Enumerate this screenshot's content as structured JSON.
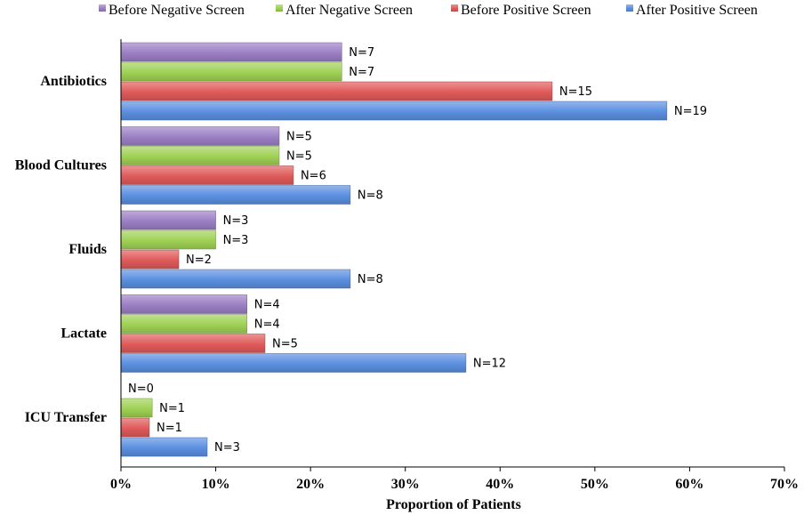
{
  "chart_data": {
    "type": "bar",
    "orientation": "horizontal",
    "categories": [
      "Antibiotics",
      "Blood Cultures",
      "Fluids",
      "Lactate",
      "ICU Transfer"
    ],
    "series": [
      {
        "name": "Before Negative Screen",
        "color": "#9b7fc4",
        "values": [
          0.233,
          0.167,
          0.1,
          0.133,
          0.0
        ],
        "labels": [
          "N=7",
          "N=5",
          "N=3",
          "N=4",
          "N=0"
        ]
      },
      {
        "name": "After Negative Screen",
        "color": "#9fd155",
        "values": [
          0.233,
          0.167,
          0.1,
          0.133,
          0.033
        ],
        "labels": [
          "N=7",
          "N=5",
          "N=3",
          "N=4",
          "N=1"
        ]
      },
      {
        "name": "Before Positive Screen",
        "color": "#e05a5a",
        "values": [
          0.455,
          0.182,
          0.061,
          0.152,
          0.03
        ],
        "labels": [
          "N=15",
          "N=6",
          "N=2",
          "N=5",
          "N=1"
        ]
      },
      {
        "name": "After Positive Screen",
        "color": "#5b8fe0",
        "values": [
          0.576,
          0.242,
          0.242,
          0.364,
          0.091
        ],
        "labels": [
          "N=19",
          "N=8",
          "N=8",
          "N=12",
          "N=3"
        ]
      }
    ],
    "xlim": [
      0,
      0.7
    ],
    "xticks": [
      0,
      0.1,
      0.2,
      0.3,
      0.4,
      0.5,
      0.6,
      0.7
    ],
    "xtick_labels": [
      "0%",
      "10%",
      "20%",
      "30%",
      "40%",
      "50%",
      "60%",
      "70%"
    ],
    "xlabel": "Proportion of Patients",
    "ylabel": "",
    "title": "",
    "legend_position": "top",
    "grid": false
  }
}
